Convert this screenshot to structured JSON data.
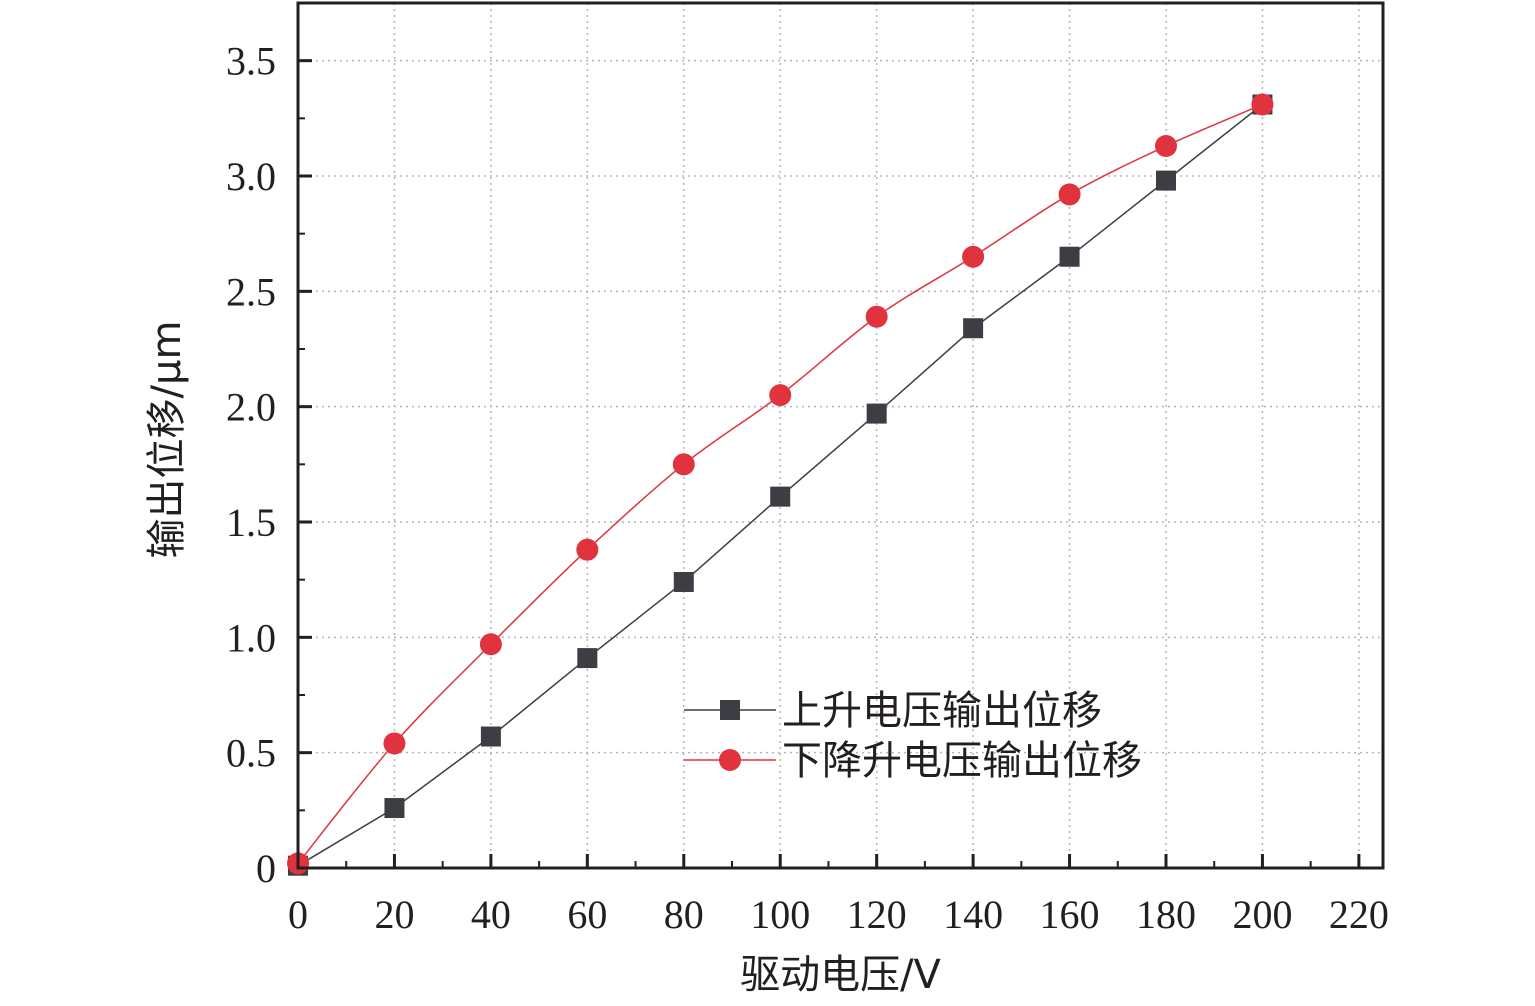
{
  "chart_data": {
    "type": "line",
    "title": "",
    "xlabel": "驱动电压/V",
    "ylabel": "输出位移/μm",
    "xlim": [
      0,
      225
    ],
    "ylim": [
      0,
      3.75
    ],
    "x_ticks": [
      "0",
      "20",
      "40",
      "60",
      "80",
      "100",
      "120",
      "140",
      "160",
      "180",
      "200",
      "220"
    ],
    "y_ticks": [
      "0",
      "0.5",
      "1.0",
      "1.5",
      "2.0",
      "2.5",
      "3.0",
      "3.5"
    ],
    "grid": true,
    "legend_position": "bottom-right",
    "x": [
      0,
      20,
      40,
      60,
      80,
      100,
      120,
      140,
      160,
      180,
      200
    ],
    "series": [
      {
        "name": "上升电压输出位移",
        "marker": "square",
        "color": "#3d3d44",
        "values": [
          0.01,
          0.26,
          0.57,
          0.91,
          1.24,
          1.61,
          1.97,
          2.34,
          2.65,
          2.98,
          3.31
        ]
      },
      {
        "name": "下降升电压输出位移",
        "marker": "circle",
        "color": "#e0333e",
        "values": [
          0.02,
          0.54,
          0.97,
          1.38,
          1.75,
          2.05,
          2.39,
          2.65,
          2.92,
          3.13,
          3.31
        ]
      }
    ]
  }
}
